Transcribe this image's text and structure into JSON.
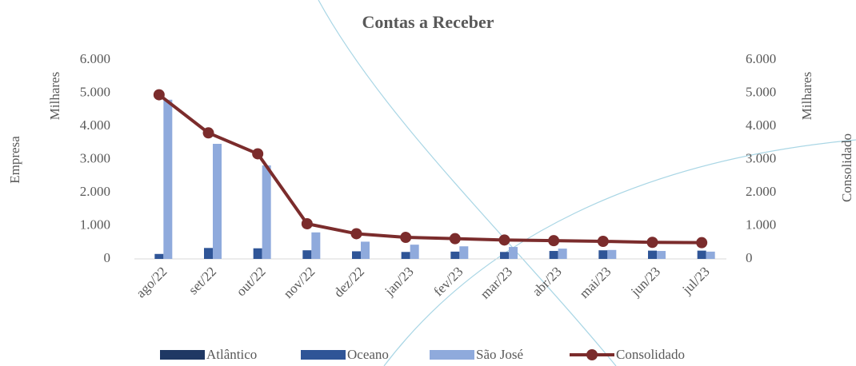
{
  "chart_data": {
    "type": "bar",
    "title": "Contas a Receber",
    "y_axis_label": "Empresa",
    "y_units_label": "Milhares",
    "y2_axis_label": "Consolidado",
    "y2_units_label": "Milhares",
    "categories": [
      "ago/22",
      "set/22",
      "out/22",
      "nov/22",
      "dez/22",
      "jan/23",
      "fev/23",
      "mar/23",
      "abr/23",
      "mai/23",
      "jun/23",
      "jul/23"
    ],
    "series": [
      {
        "name": "Atlântico",
        "color": "#1f3864",
        "type": "bar",
        "values": [
          0,
          0,
          0,
          0,
          0,
          0,
          0,
          0,
          0,
          0,
          0,
          0
        ]
      },
      {
        "name": "Oceano",
        "color": "#2f5597",
        "type": "bar",
        "values": [
          150,
          330,
          320,
          260,
          230,
          210,
          220,
          210,
          240,
          260,
          250,
          250
        ]
      },
      {
        "name": "São  José",
        "color": "#8faadc",
        "type": "bar",
        "values": [
          4800,
          3470,
          2820,
          800,
          520,
          430,
          380,
          360,
          310,
          270,
          240,
          220
        ]
      },
      {
        "name": "Consolidado",
        "color": "#7b2c2c",
        "type": "line",
        "axis": "y2",
        "values": [
          4950,
          3800,
          3170,
          1060,
          760,
          650,
          610,
          570,
          550,
          530,
          500,
          490
        ]
      }
    ],
    "ylim": [
      0,
      6000
    ],
    "yticks": [
      0,
      {
        "value": 1000,
        "label": "1.000"
      },
      {
        "value": 2000,
        "label": "2.000"
      },
      {
        "value": 3000,
        "label": "3.000"
      },
      {
        "value": 4000,
        "label": "4.000"
      },
      {
        "value": 5000,
        "label": "5.000"
      },
      {
        "value": 6000,
        "label": "6.000"
      }
    ],
    "y2lim": [
      0,
      6000
    ],
    "y2ticks": [
      0,
      {
        "value": 1000,
        "label": "1.000"
      },
      {
        "value": 2000,
        "label": "2.000"
      },
      {
        "value": 3000,
        "label": "3.000"
      },
      {
        "value": 4000,
        "label": "4.000"
      },
      {
        "value": 5000,
        "label": "5.000"
      },
      {
        "value": 6000,
        "label": "6.000"
      }
    ],
    "grid": false,
    "legend": "bottom"
  }
}
